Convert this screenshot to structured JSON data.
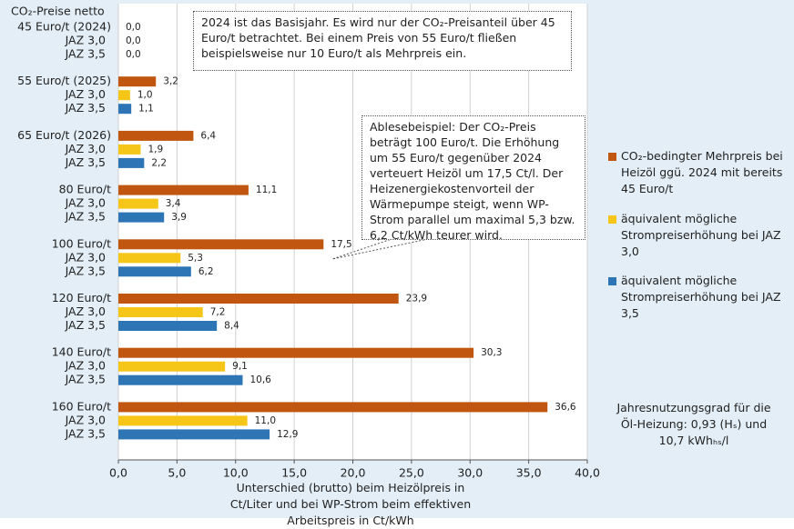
{
  "chart_data": {
    "type": "bar",
    "orientation": "horizontal",
    "label_header": "CO₂-Preise netto",
    "categories": [
      "45 Euro/t (2024)",
      "55 Euro/t (2025)",
      "65 Euro/t (2026)",
      "80 Euro/t",
      "100 Euro/t",
      "120 Euro/t",
      "140 Euro/t",
      "160 Euro/t"
    ],
    "sub_labels": [
      "JAZ 3,0",
      "JAZ 3,5"
    ],
    "series": [
      {
        "name": "CO₂-bedingter Mehrpreis bei Heizöl ggü. 2024 mit bereits 45 Euro/t",
        "color": "#c0560f",
        "values": [
          0,
          3.2,
          6.4,
          11.1,
          17.5,
          23.9,
          30.3,
          36.6
        ],
        "value_labels": [
          "0,0",
          "3,2",
          "6,4",
          "11,1",
          "17,5",
          "23,9",
          "30,3",
          "36,6"
        ]
      },
      {
        "name": "äquivalent mögliche Strompreiserhöhung bei JAZ 3,0",
        "color": "#f5c518",
        "values": [
          0,
          1.0,
          1.9,
          3.4,
          5.3,
          7.2,
          9.1,
          11.0
        ],
        "value_labels": [
          "0,0",
          "1,0",
          "1,9",
          "3,4",
          "5,3",
          "7,2",
          "9,1",
          "11,0"
        ]
      },
      {
        "name": "äquivalent mögliche Strompreiserhöhung bei JAZ 3,5",
        "color": "#2e75b6",
        "values": [
          0,
          1.1,
          2.2,
          3.9,
          6.2,
          8.4,
          10.6,
          12.9
        ],
        "value_labels": [
          "0,0",
          "1,1",
          "2,2",
          "3,9",
          "6,2",
          "8,4",
          "10,6",
          "12,9"
        ]
      }
    ],
    "xlim": [
      0,
      40
    ],
    "xticks": [
      {
        "value": 0,
        "label": "0,0"
      },
      {
        "value": 5,
        "label": "5,0"
      },
      {
        "value": 10,
        "label": "10,0"
      },
      {
        "value": 15,
        "label": "15,0"
      },
      {
        "value": 20,
        "label": "20,0"
      },
      {
        "value": 25,
        "label": "25,0"
      },
      {
        "value": 30,
        "label": "30,0"
      },
      {
        "value": 35,
        "label": "35,0"
      },
      {
        "value": 40,
        "label": "40,0"
      }
    ],
    "xlabel": "Unterschied (brutto) beim Heizölpreis in Ct/Liter und bei WP-Strom beim effektiven Arbeitspreis in Ct/kWh",
    "grid": true,
    "annotations": [
      "2024 ist das Basisjahr. Es wird nur der CO₂-Preisanteil über 45 Euro/t betrachtet. Bei einem Preis von 55 Euro/t fließen beispielsweise nur 10 Euro/t als Mehrpreis ein.",
      "Ablesebeispiel: Der CO₂-Preis beträgt 100 Euro/t. Die Erhöhung um 55 Euro/t gegenüber 2024 verteuert Heizöl um 17,5 Ct/l. Der Heizenergiekostenvorteil der Wärmepumpe steigt, wenn WP-Strom parallel um maximal 5,3 bzw. 6,2 Ct/kWh teurer wird."
    ],
    "note": "Jahresnutzungsgrad für die Öl-Heizung: 0,93 (Hₛ) und 10,7 kWhₕₛ/l"
  }
}
